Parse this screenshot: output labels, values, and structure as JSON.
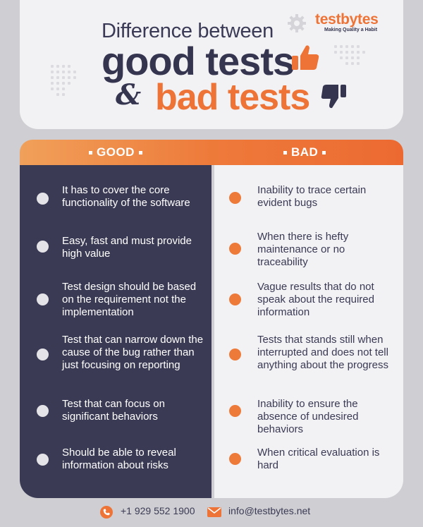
{
  "brand": {
    "name": "testbytes",
    "tagline": "Making Quality a Habit"
  },
  "title": {
    "line1": "Difference between",
    "line2": "good tests",
    "amp": "&",
    "line3": "bad tests"
  },
  "columns": {
    "good_label": "GOOD",
    "bad_label": "BAD"
  },
  "good_items": [
    "It has to cover the core functionality of the software",
    "Easy, fast and must provide high value",
    "Test design should be based on the requirement not the implementation",
    "Test that can narrow down the cause of the bug rather than just focusing on reporting",
    "Test that can focus on significant behaviors",
    "Should be able to reveal information about risks"
  ],
  "bad_items": [
    "Inability to trace certain evident bugs",
    "When there is hefty maintenance or no traceability",
    "Vague results that do not speak about the required information",
    "Tests that stands still when interrupted and does not tell anything about the progress",
    "Inability to ensure the absence of undesired behaviors",
    "When critical evaluation is hard"
  ],
  "footer": {
    "phone": "+1 929 552 1900",
    "email": "info@testbytes.net"
  },
  "colors": {
    "accent": "#ee7336",
    "dark": "#3a3a55",
    "light": "#f2f2f4"
  },
  "icons": [
    "gear-icon",
    "thumbs-up-icon",
    "thumbs-down-icon",
    "phone-icon",
    "mail-icon"
  ]
}
